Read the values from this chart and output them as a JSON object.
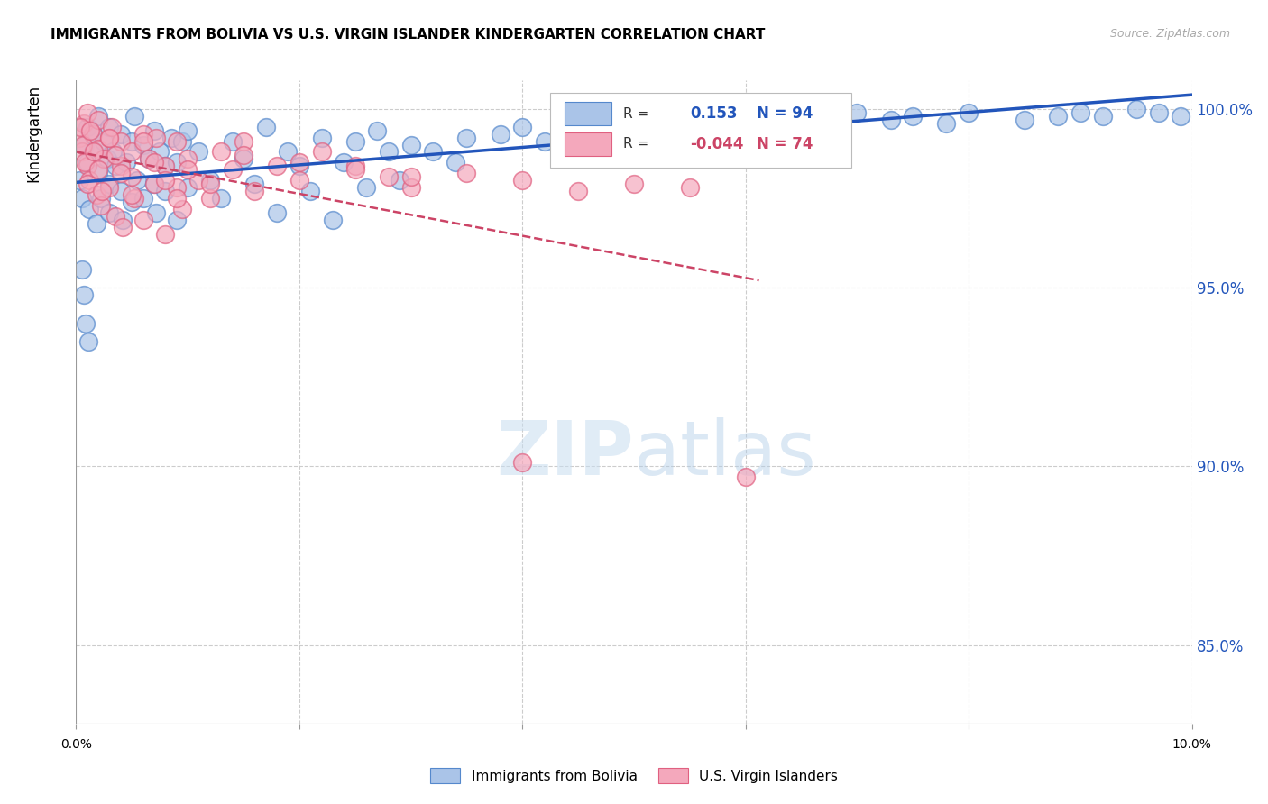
{
  "title": "IMMIGRANTS FROM BOLIVIA VS U.S. VIRGIN ISLANDER KINDERGARTEN CORRELATION CHART",
  "source": "Source: ZipAtlas.com",
  "ylabel": "Kindergarten",
  "r_blue": 0.153,
  "n_blue": 94,
  "r_pink": -0.044,
  "n_pink": 74,
  "xlim": [
    0.0,
    0.1
  ],
  "ylim": [
    0.828,
    1.008
  ],
  "y_ticks": [
    0.85,
    0.9,
    0.95,
    1.0
  ],
  "y_tick_labels": [
    "85.0%",
    "90.0%",
    "95.0%",
    "100.0%"
  ],
  "blue_color": "#aac4e8",
  "pink_color": "#f4a8bc",
  "blue_edge_color": "#5588cc",
  "pink_edge_color": "#e06080",
  "blue_line_color": "#2255bb",
  "pink_line_color": "#cc4466",
  "watermark_color": "#ddeeff",
  "legend_label_blue": "Immigrants from Bolivia",
  "legend_label_pink": "U.S. Virgin Islanders",
  "blue_scatter_x": [
    0.0003,
    0.0005,
    0.0008,
    0.001,
    0.001,
    0.0012,
    0.0015,
    0.0015,
    0.0018,
    0.002,
    0.002,
    0.0022,
    0.0025,
    0.0028,
    0.003,
    0.003,
    0.003,
    0.0033,
    0.0035,
    0.004,
    0.004,
    0.0042,
    0.0045,
    0.005,
    0.005,
    0.0052,
    0.0055,
    0.006,
    0.006,
    0.0065,
    0.007,
    0.007,
    0.0072,
    0.0075,
    0.008,
    0.008,
    0.0085,
    0.009,
    0.009,
    0.0095,
    0.01,
    0.01,
    0.011,
    0.012,
    0.013,
    0.014,
    0.015,
    0.016,
    0.017,
    0.018,
    0.019,
    0.02,
    0.021,
    0.022,
    0.023,
    0.024,
    0.025,
    0.026,
    0.027,
    0.028,
    0.029,
    0.03,
    0.032,
    0.034,
    0.035,
    0.038,
    0.04,
    0.042,
    0.045,
    0.048,
    0.05,
    0.052,
    0.055,
    0.058,
    0.06,
    0.063,
    0.065,
    0.068,
    0.07,
    0.073,
    0.075,
    0.078,
    0.08,
    0.085,
    0.088,
    0.09,
    0.092,
    0.095,
    0.097,
    0.099,
    0.0005,
    0.0007,
    0.0009,
    0.0011
  ],
  "blue_scatter_y": [
    0.98,
    0.975,
    0.99,
    0.985,
    0.995,
    0.972,
    0.988,
    0.993,
    0.968,
    0.982,
    0.998,
    0.975,
    0.991,
    0.986,
    0.979,
    0.995,
    0.971,
    0.988,
    0.984,
    0.977,
    0.993,
    0.969,
    0.985,
    0.991,
    0.974,
    0.998,
    0.98,
    0.975,
    0.99,
    0.986,
    0.979,
    0.994,
    0.971,
    0.988,
    0.984,
    0.977,
    0.992,
    0.969,
    0.985,
    0.991,
    0.978,
    0.994,
    0.988,
    0.98,
    0.975,
    0.991,
    0.986,
    0.979,
    0.995,
    0.971,
    0.988,
    0.984,
    0.977,
    0.992,
    0.969,
    0.985,
    0.991,
    0.978,
    0.994,
    0.988,
    0.98,
    0.99,
    0.988,
    0.985,
    0.992,
    0.993,
    0.995,
    0.991,
    0.996,
    0.993,
    0.997,
    0.994,
    0.998,
    0.995,
    0.999,
    0.996,
    1.0,
    0.997,
    0.999,
    0.997,
    0.998,
    0.996,
    0.999,
    0.997,
    0.998,
    0.999,
    0.998,
    1.0,
    0.999,
    0.998,
    0.955,
    0.948,
    0.94,
    0.935
  ],
  "pink_scatter_x": [
    0.0003,
    0.0005,
    0.0007,
    0.001,
    0.001,
    0.0012,
    0.0015,
    0.0018,
    0.002,
    0.002,
    0.0022,
    0.0025,
    0.003,
    0.003,
    0.0032,
    0.0035,
    0.004,
    0.004,
    0.0042,
    0.005,
    0.005,
    0.0052,
    0.006,
    0.006,
    0.0065,
    0.007,
    0.0072,
    0.008,
    0.008,
    0.009,
    0.009,
    0.0095,
    0.01,
    0.011,
    0.012,
    0.013,
    0.014,
    0.015,
    0.016,
    0.018,
    0.02,
    0.022,
    0.025,
    0.028,
    0.03,
    0.035,
    0.04,
    0.045,
    0.05,
    0.055,
    0.0004,
    0.0006,
    0.0008,
    0.001,
    0.0013,
    0.0016,
    0.002,
    0.0023,
    0.003,
    0.0035,
    0.004,
    0.005,
    0.006,
    0.007,
    0.008,
    0.009,
    0.01,
    0.012,
    0.015,
    0.02,
    0.025,
    0.03,
    0.04,
    0.06
  ],
  "pink_scatter_y": [
    0.992,
    0.988,
    0.996,
    0.984,
    0.999,
    0.98,
    0.993,
    0.976,
    0.989,
    0.997,
    0.973,
    0.986,
    0.992,
    0.978,
    0.995,
    0.97,
    0.984,
    0.991,
    0.967,
    0.981,
    0.988,
    0.975,
    0.993,
    0.969,
    0.986,
    0.979,
    0.992,
    0.965,
    0.984,
    0.978,
    0.991,
    0.972,
    0.986,
    0.98,
    0.975,
    0.988,
    0.983,
    0.991,
    0.977,
    0.984,
    0.98,
    0.988,
    0.984,
    0.981,
    0.978,
    0.982,
    0.98,
    0.977,
    0.979,
    0.978,
    0.995,
    0.99,
    0.985,
    0.979,
    0.994,
    0.988,
    0.983,
    0.977,
    0.992,
    0.987,
    0.982,
    0.976,
    0.991,
    0.985,
    0.98,
    0.975,
    0.983,
    0.979,
    0.987,
    0.985,
    0.983,
    0.981,
    0.901,
    0.897
  ]
}
